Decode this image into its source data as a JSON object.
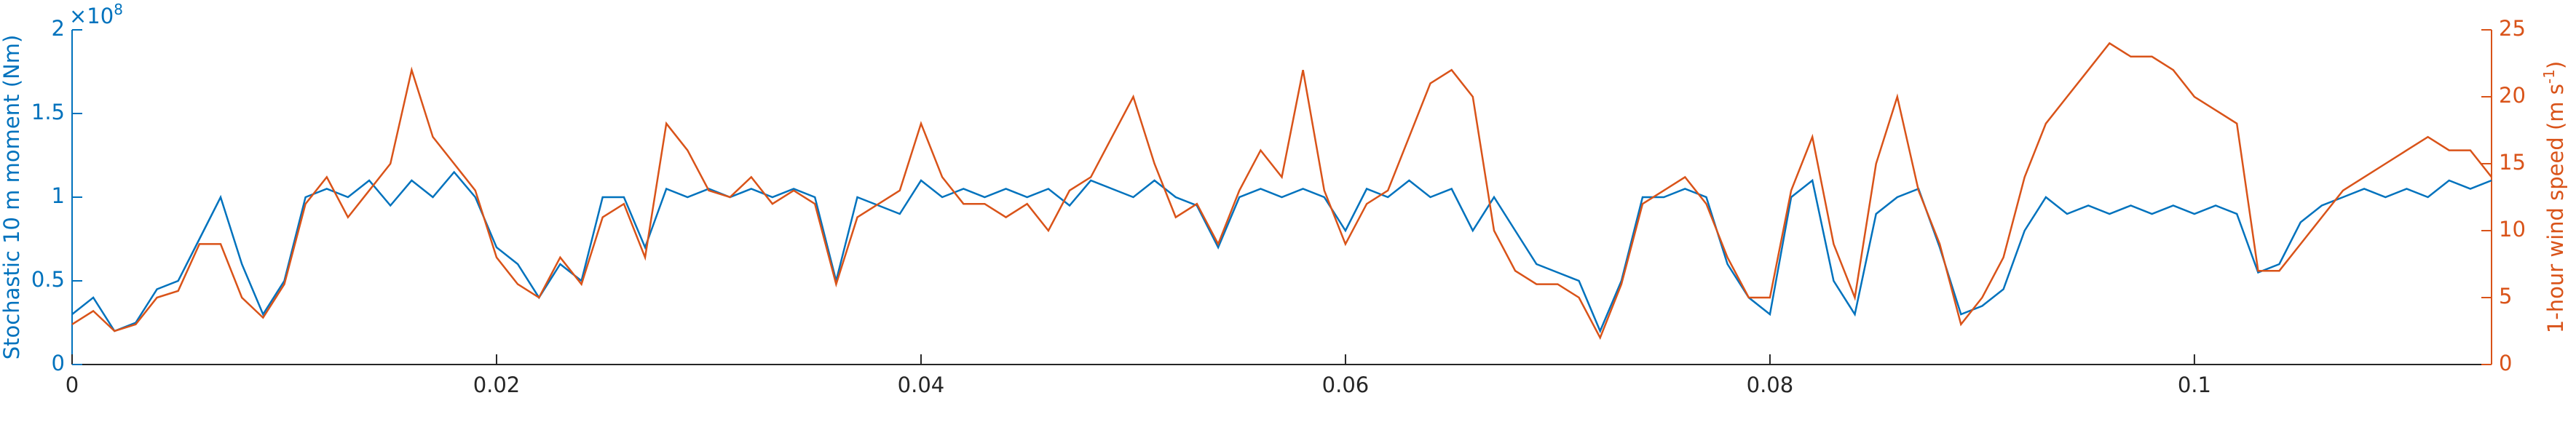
{
  "chart_data": {
    "type": "line",
    "ylabel": "Stochastic 10 m moment (Nm)",
    "y_exponent_base": "×10",
    "y_exponent_power": "8",
    "y2label": "1-hour wind speed (m s",
    "y2label_sup": "-1",
    "y2label_end": ")",
    "x": [
      0,
      0.001,
      0.002,
      0.003,
      0.004,
      0.005,
      0.006,
      0.007,
      0.008,
      0.009,
      0.01,
      0.011,
      0.012,
      0.013,
      0.014,
      0.015,
      0.016,
      0.017,
      0.018,
      0.019,
      0.02,
      0.021,
      0.022,
      0.023,
      0.024,
      0.025,
      0.026,
      0.027,
      0.028,
      0.029,
      0.03,
      0.031,
      0.032,
      0.033,
      0.034,
      0.035,
      0.036,
      0.037,
      0.038,
      0.039,
      0.04,
      0.041,
      0.042,
      0.043,
      0.044,
      0.045,
      0.046,
      0.047,
      0.048,
      0.049,
      0.05,
      0.051,
      0.052,
      0.053,
      0.054,
      0.055,
      0.056,
      0.057,
      0.058,
      0.059,
      0.06,
      0.061,
      0.062,
      0.063,
      0.064,
      0.065,
      0.066,
      0.067,
      0.068,
      0.069,
      0.07,
      0.071,
      0.072,
      0.073,
      0.074,
      0.075,
      0.076,
      0.077,
      0.078,
      0.079,
      0.08,
      0.081,
      0.082,
      0.083,
      0.084,
      0.085,
      0.086,
      0.087,
      0.088,
      0.089,
      0.09,
      0.091,
      0.092,
      0.093,
      0.094,
      0.095,
      0.096,
      0.097,
      0.098,
      0.099,
      0.1,
      0.101,
      0.102,
      0.103,
      0.104,
      0.105,
      0.106,
      0.107,
      0.108,
      0.109,
      0.11,
      0.111,
      0.112,
      0.113,
      0.114
    ],
    "series": [
      {
        "name": "Stochastic 10 m moment",
        "color": "#0072BD",
        "values": [
          0.3,
          0.4,
          0.2,
          0.25,
          0.45,
          0.5,
          0.75,
          1.0,
          0.6,
          0.3,
          0.5,
          1.0,
          1.05,
          1.0,
          1.1,
          0.95,
          1.1,
          1.0,
          1.15,
          1.0,
          0.7,
          0.6,
          0.4,
          0.6,
          0.5,
          1.0,
          1.0,
          0.7,
          1.05,
          1.0,
          1.05,
          1.0,
          1.05,
          1.0,
          1.05,
          1.0,
          0.5,
          1.0,
          0.95,
          0.9,
          1.1,
          1.0,
          1.05,
          1.0,
          1.05,
          1.0,
          1.05,
          0.95,
          1.1,
          1.05,
          1.0,
          1.1,
          1.0,
          0.95,
          0.7,
          1.0,
          1.05,
          1.0,
          1.05,
          1.0,
          0.8,
          1.05,
          1.0,
          1.1,
          1.0,
          1.05,
          0.8,
          1.0,
          0.8,
          0.6,
          0.55,
          0.5,
          0.2,
          0.5,
          1.0,
          1.0,
          1.05,
          1.0,
          0.6,
          0.4,
          0.3,
          1.0,
          1.1,
          0.5,
          0.3,
          0.9,
          1.0,
          1.05,
          0.7,
          0.3,
          0.35,
          0.45,
          0.8,
          1.0,
          0.9,
          0.95,
          0.9,
          0.95,
          0.9,
          0.95,
          0.9,
          0.95,
          0.9,
          0.55,
          0.6,
          0.85,
          0.95,
          1.0,
          1.05,
          1.0,
          1.05,
          1.0,
          1.1,
          1.05,
          1.1
        ]
      },
      {
        "name": "1-hour wind speed",
        "color": "#D95319",
        "axis": "y2",
        "values": [
          3,
          4,
          2.5,
          3,
          5,
          5.5,
          9,
          9,
          5,
          3.5,
          6,
          12,
          14,
          11,
          13,
          15,
          22,
          17,
          15,
          13,
          8,
          6,
          5,
          8,
          6,
          11,
          12,
          8,
          18,
          16,
          13,
          12.5,
          14,
          12,
          13,
          12,
          6,
          11,
          12,
          13,
          18,
          14,
          12,
          12,
          11,
          12,
          10,
          13,
          14,
          17,
          20,
          15,
          11,
          12,
          9,
          13,
          16,
          14,
          22,
          13,
          9,
          12,
          13,
          17,
          21,
          22,
          20,
          10,
          7,
          6,
          6,
          5,
          2,
          6,
          12,
          13,
          14,
          12,
          8,
          5,
          5,
          13,
          17,
          9,
          5,
          15,
          20,
          13,
          9,
          3,
          5,
          8,
          14,
          18,
          20,
          22,
          24,
          23,
          23,
          22,
          20,
          19,
          18,
          7,
          7,
          9,
          11,
          13,
          14,
          15,
          16,
          17,
          16,
          16,
          14
        ]
      }
    ],
    "xlim": [
      0,
      0.114
    ],
    "xticks": [
      0,
      0.02,
      0.04,
      0.06,
      0.08,
      0.1
    ],
    "ylim": [
      0,
      2
    ],
    "yticks": [
      0,
      0.5,
      1,
      1.5,
      2
    ],
    "y2lim": [
      0,
      25
    ],
    "y2ticks": [
      0,
      5,
      10,
      15,
      20,
      25
    ],
    "grid": false
  }
}
